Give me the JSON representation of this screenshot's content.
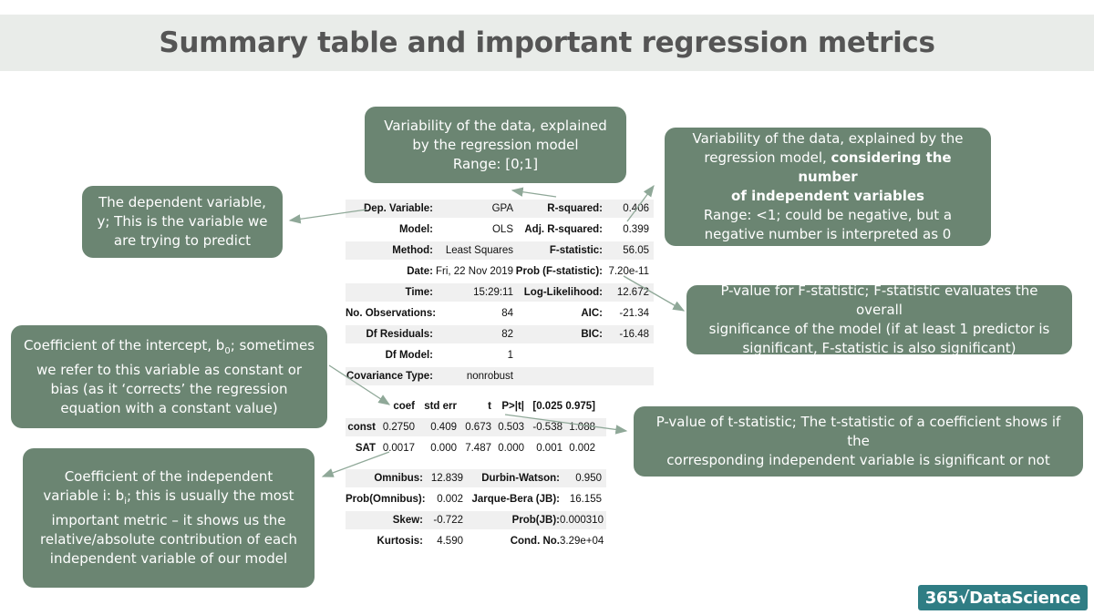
{
  "title": "Summary table and important regression metrics",
  "callouts": {
    "rsquared": {
      "lines": [
        "Variability of the data, explained",
        "by the regression model",
        "Range: [0;1]"
      ]
    },
    "adj_rsquared": {
      "line1": "Variability of the data, explained by the",
      "line2_plain": "regression model, ",
      "line2_bold": "considering the number",
      "line3_bold": "of independent variables",
      "line4": "Range: <1; could be negative, but a",
      "line5": "negative number is interpreted as 0"
    },
    "dep_var": {
      "lines": [
        "The dependent variable,",
        "y; This is the variable we",
        "are trying to predict"
      ]
    },
    "fstat_p": {
      "lines": [
        "P-value for F-statistic; F-statistic evaluates the overall",
        "significance of the model (if at least 1 predictor is",
        "significant, F-statistic is also significant)"
      ]
    },
    "intercept": {
      "line1_pre": "Coefficient of the intercept, b",
      "line1_sub": "0",
      "line1_post": "; sometimes",
      "lines": [
        "we refer to this variable as constant or",
        "bias (as it ‘corrects’ the regression",
        "equation with a constant value)"
      ]
    },
    "tstat_p": {
      "lines": [
        "P-value of t-statistic; The t-statistic of a coefficient shows if the",
        "corresponding independent variable is significant or not"
      ]
    },
    "indep_coef": {
      "line1": "Coefficient of the independent",
      "line2_pre": "variable i: b",
      "line2_sub": "i",
      "line2_post": "; this is usually the most",
      "lines": [
        "important metric – it shows us the",
        "relative/absolute contribution of each",
        "independent variable of our model"
      ]
    }
  },
  "model_table": {
    "rows": [
      {
        "l1": "Dep. Variable:",
        "v1": "GPA",
        "l2": "R-squared:",
        "v2": "0.406"
      },
      {
        "l1": "Model:",
        "v1": "OLS",
        "l2": "Adj. R-squared:",
        "v2": "0.399"
      },
      {
        "l1": "Method:",
        "v1": "Least Squares",
        "l2": "F-statistic:",
        "v2": "56.05"
      },
      {
        "l1": "Date:",
        "v1": "Fri, 22 Nov 2019",
        "l2": "Prob (F-statistic):",
        "v2": "7.20e-11"
      },
      {
        "l1": "Time:",
        "v1": "15:29:11",
        "l2": "Log-Likelihood:",
        "v2": "12.672"
      },
      {
        "l1": "No. Observations:",
        "v1": "84",
        "l2": "AIC:",
        "v2": "-21.34"
      },
      {
        "l1": "Df Residuals:",
        "v1": "82",
        "l2": "BIC:",
        "v2": "-16.48"
      },
      {
        "l1": "Df Model:",
        "v1": "1",
        "l2": "",
        "v2": ""
      },
      {
        "l1": "Covariance Type:",
        "v1": "nonrobust",
        "l2": "",
        "v2": ""
      }
    ]
  },
  "coef_table": {
    "headers": [
      "coef",
      "std err",
      "t",
      "P>|t|",
      "[0.025",
      "0.975]"
    ],
    "rows": [
      {
        "name": "const",
        "cells": [
          "0.2750",
          "0.409",
          "0.673",
          "0.503",
          "-0.538",
          "1.088"
        ]
      },
      {
        "name": "SAT",
        "cells": [
          "0.0017",
          "0.000",
          "7.487",
          "0.000",
          "0.001",
          "0.002"
        ]
      }
    ]
  },
  "diag_table": {
    "rows": [
      {
        "l1": "Omnibus:",
        "v1": "12.839",
        "l2": "Durbin-Watson:",
        "v2": "0.950"
      },
      {
        "l1": "Prob(Omnibus):",
        "v1": "0.002",
        "l2": "Jarque-Bera (JB):",
        "v2": "16.155"
      },
      {
        "l1": "Skew:",
        "v1": "-0.722",
        "l2": "Prob(JB):",
        "v2": "0.000310"
      },
      {
        "l1": "Kurtosis:",
        "v1": "4.590",
        "l2": "Cond. No.",
        "v2": "3.29e+04"
      }
    ]
  },
  "brand": {
    "text": "365√DataScience"
  },
  "colors": {
    "callout": "#6b8572",
    "title_bar": "#e9ece9",
    "arrow": "#8fa898",
    "brand": "#2f7d84"
  }
}
